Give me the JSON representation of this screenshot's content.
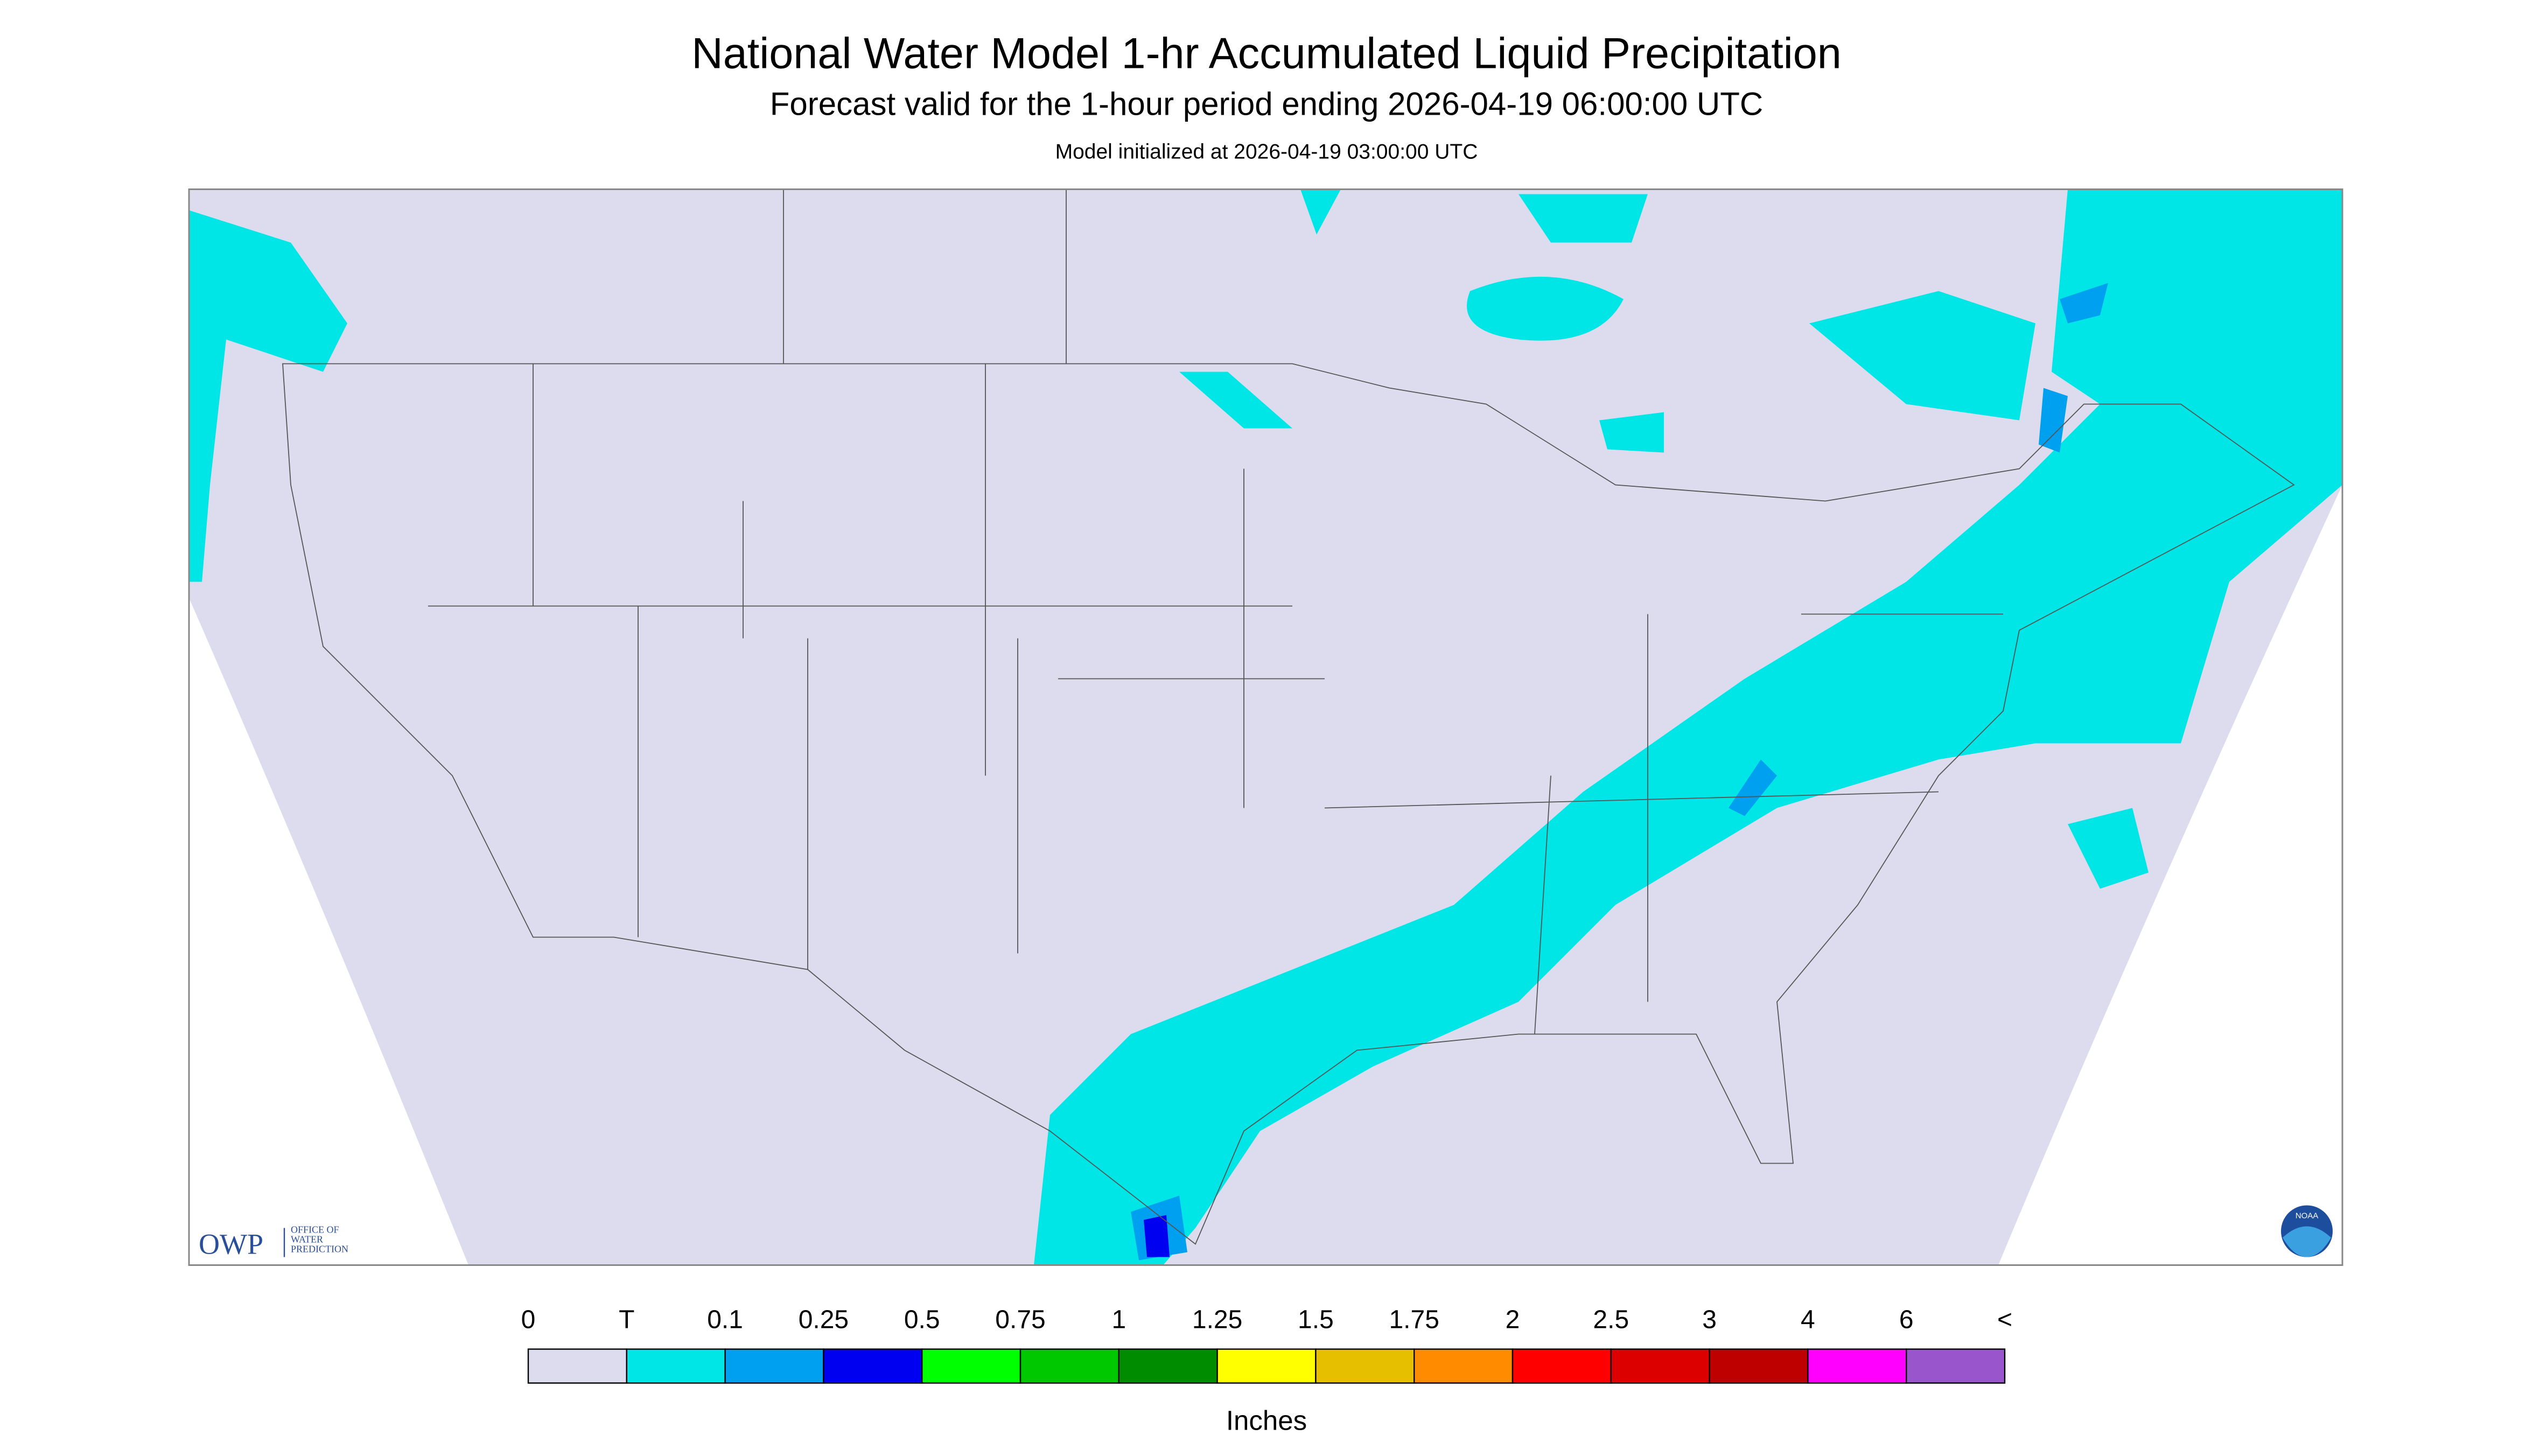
{
  "header": {
    "title": "National Water Model 1-hr Accumulated Liquid Precipitation",
    "subtitle": "Forecast valid for the 1-hour period ending 2026-04-19 06:00:00 UTC",
    "note": "Model initialized at 2026-04-19 03:00:00 UTC"
  },
  "logos": {
    "owp": "OWP",
    "owp_lines": [
      "OFFICE OF",
      "WATER",
      "PREDICTION"
    ],
    "noaa": "NOAA"
  },
  "legend": {
    "labels": [
      "0",
      "T",
      "0.1",
      "0.25",
      "0.5",
      "0.75",
      "1",
      "1.25",
      "1.5",
      "1.75",
      "2",
      "2.5",
      "3",
      "4",
      "6",
      "<"
    ],
    "colors": [
      "#dcdcee",
      "#00e6e6",
      "#00a0f0",
      "#0000f0",
      "#00ff00",
      "#00c800",
      "#008c00",
      "#ffff00",
      "#e6c000",
      "#ff8c00",
      "#ff0000",
      "#dc0000",
      "#be0000",
      "#ff00ff",
      "#9955cc"
    ],
    "unit": "Inches"
  }
}
